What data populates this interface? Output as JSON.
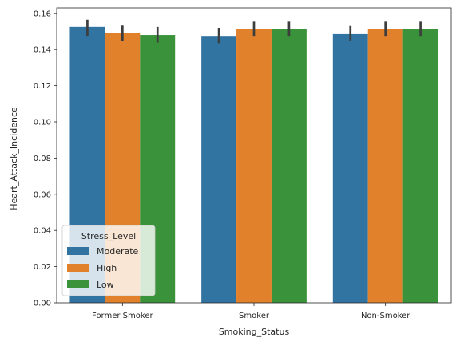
{
  "chart_data": {
    "type": "bar",
    "xlabel": "Smoking_Status",
    "ylabel": "Heart_Attack_Incidence",
    "categories": [
      "Former Smoker",
      "Smoker",
      "Non-Smoker"
    ],
    "ylim": [
      0,
      0.163
    ],
    "yticks": [
      "0.00",
      "0.02",
      "0.04",
      "0.06",
      "0.08",
      "0.10",
      "0.12",
      "0.14",
      "0.16"
    ],
    "legend": {
      "title": "Stress_Level",
      "placement": "lower-left"
    },
    "grid": false,
    "error_bars": true,
    "series": [
      {
        "name": "Moderate",
        "color": "#3274a1",
        "values": [
          0.1525,
          0.1475,
          0.1485
        ],
        "err_low": [
          0.1475,
          0.1435,
          0.1445
        ],
        "err_high": [
          0.1565,
          0.152,
          0.153
        ]
      },
      {
        "name": "High",
        "color": "#e1812c",
        "values": [
          0.149,
          0.1515,
          0.1515
        ],
        "err_low": [
          0.1448,
          0.1475,
          0.1475
        ],
        "err_high": [
          0.1532,
          0.1558,
          0.1558
        ]
      },
      {
        "name": "Low",
        "color": "#3a923a",
        "values": [
          0.148,
          0.1515,
          0.1515
        ],
        "err_low": [
          0.1438,
          0.1475,
          0.1475
        ],
        "err_high": [
          0.1525,
          0.1558,
          0.1558
        ]
      }
    ]
  }
}
